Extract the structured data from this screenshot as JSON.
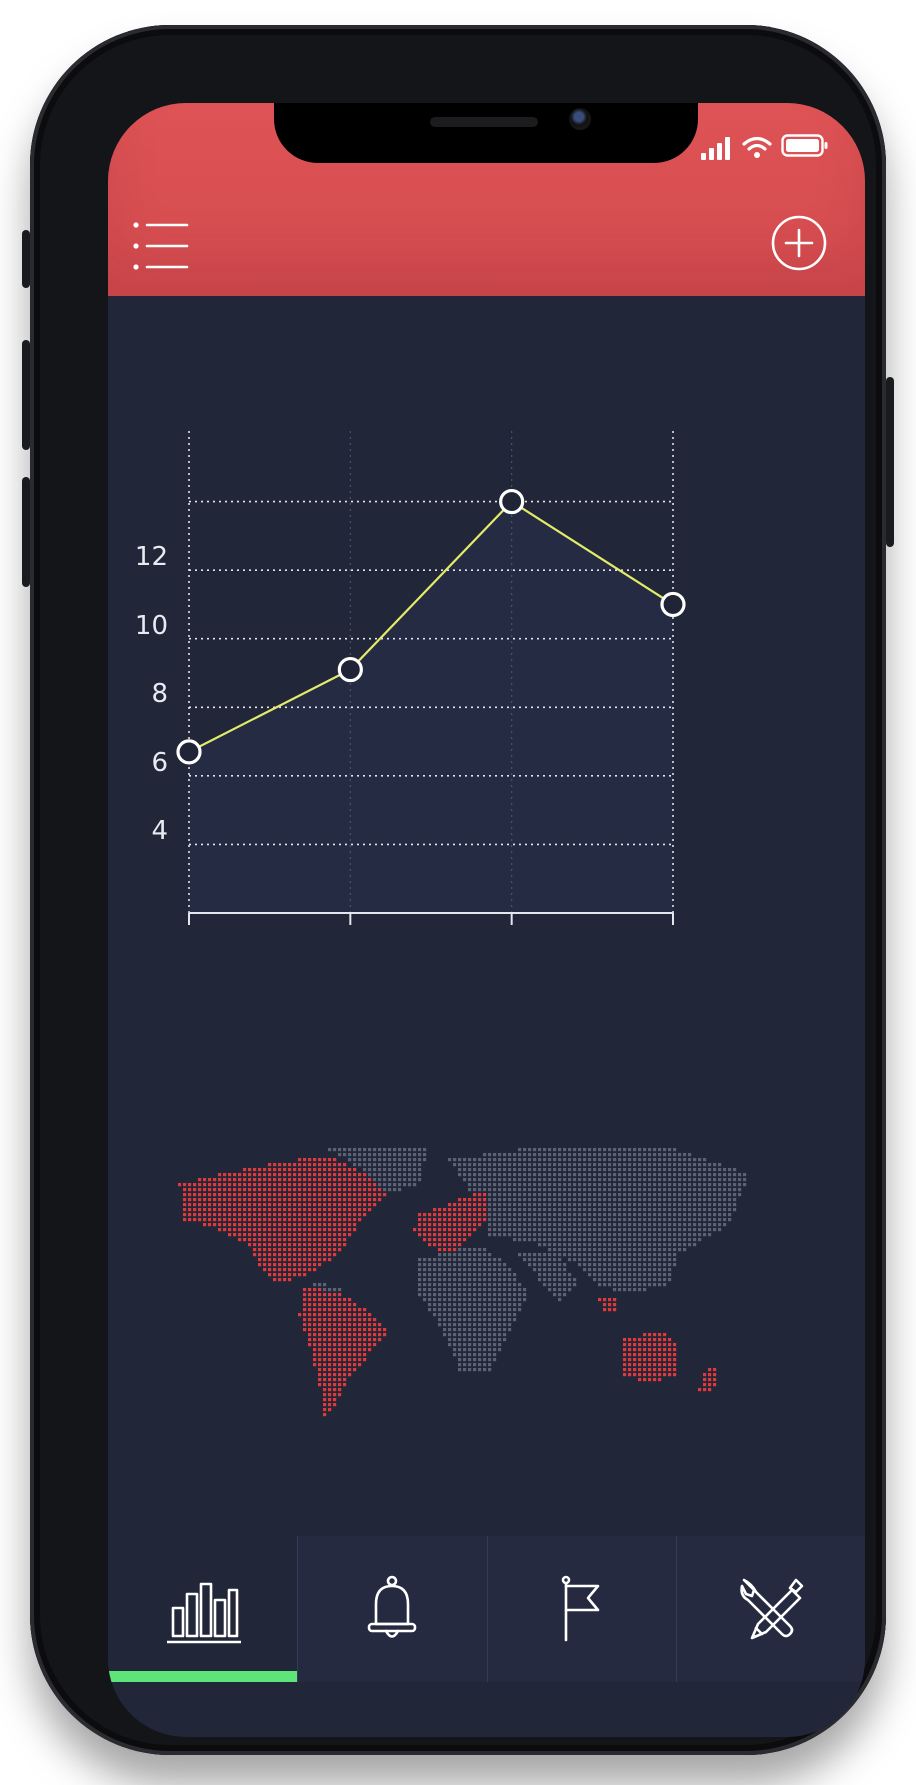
{
  "header": {
    "menu_icon": "list-menu-icon",
    "add_icon": "plus-circle-icon",
    "background_color": "#d94f52"
  },
  "status_bar": {
    "icons": [
      "signal-icon",
      "wifi-icon",
      "battery-icon"
    ]
  },
  "chart_data": {
    "type": "line",
    "x": [
      1,
      2,
      3,
      4
    ],
    "values": [
      6.7,
      9.1,
      14.0,
      11.0
    ],
    "yticks": [
      4,
      6,
      8,
      10,
      12
    ],
    "ylim": [
      2,
      16
    ],
    "grid": true,
    "line_color": "#e3eb6a",
    "marker_color": "#ffffff"
  },
  "map": {
    "highlight_color": "#e0393c",
    "base_color": "#5c6274",
    "highlighted_regions": [
      "north-america",
      "south-america",
      "western-europe",
      "southeast-asia",
      "australia",
      "new-zealand"
    ]
  },
  "tabbar": {
    "active_index": 0,
    "accent_color": "#5ee57a",
    "tabs": [
      {
        "icon": "bar-chart-icon"
      },
      {
        "icon": "bell-icon"
      },
      {
        "icon": "flag-icon"
      },
      {
        "icon": "tools-icon"
      }
    ]
  }
}
